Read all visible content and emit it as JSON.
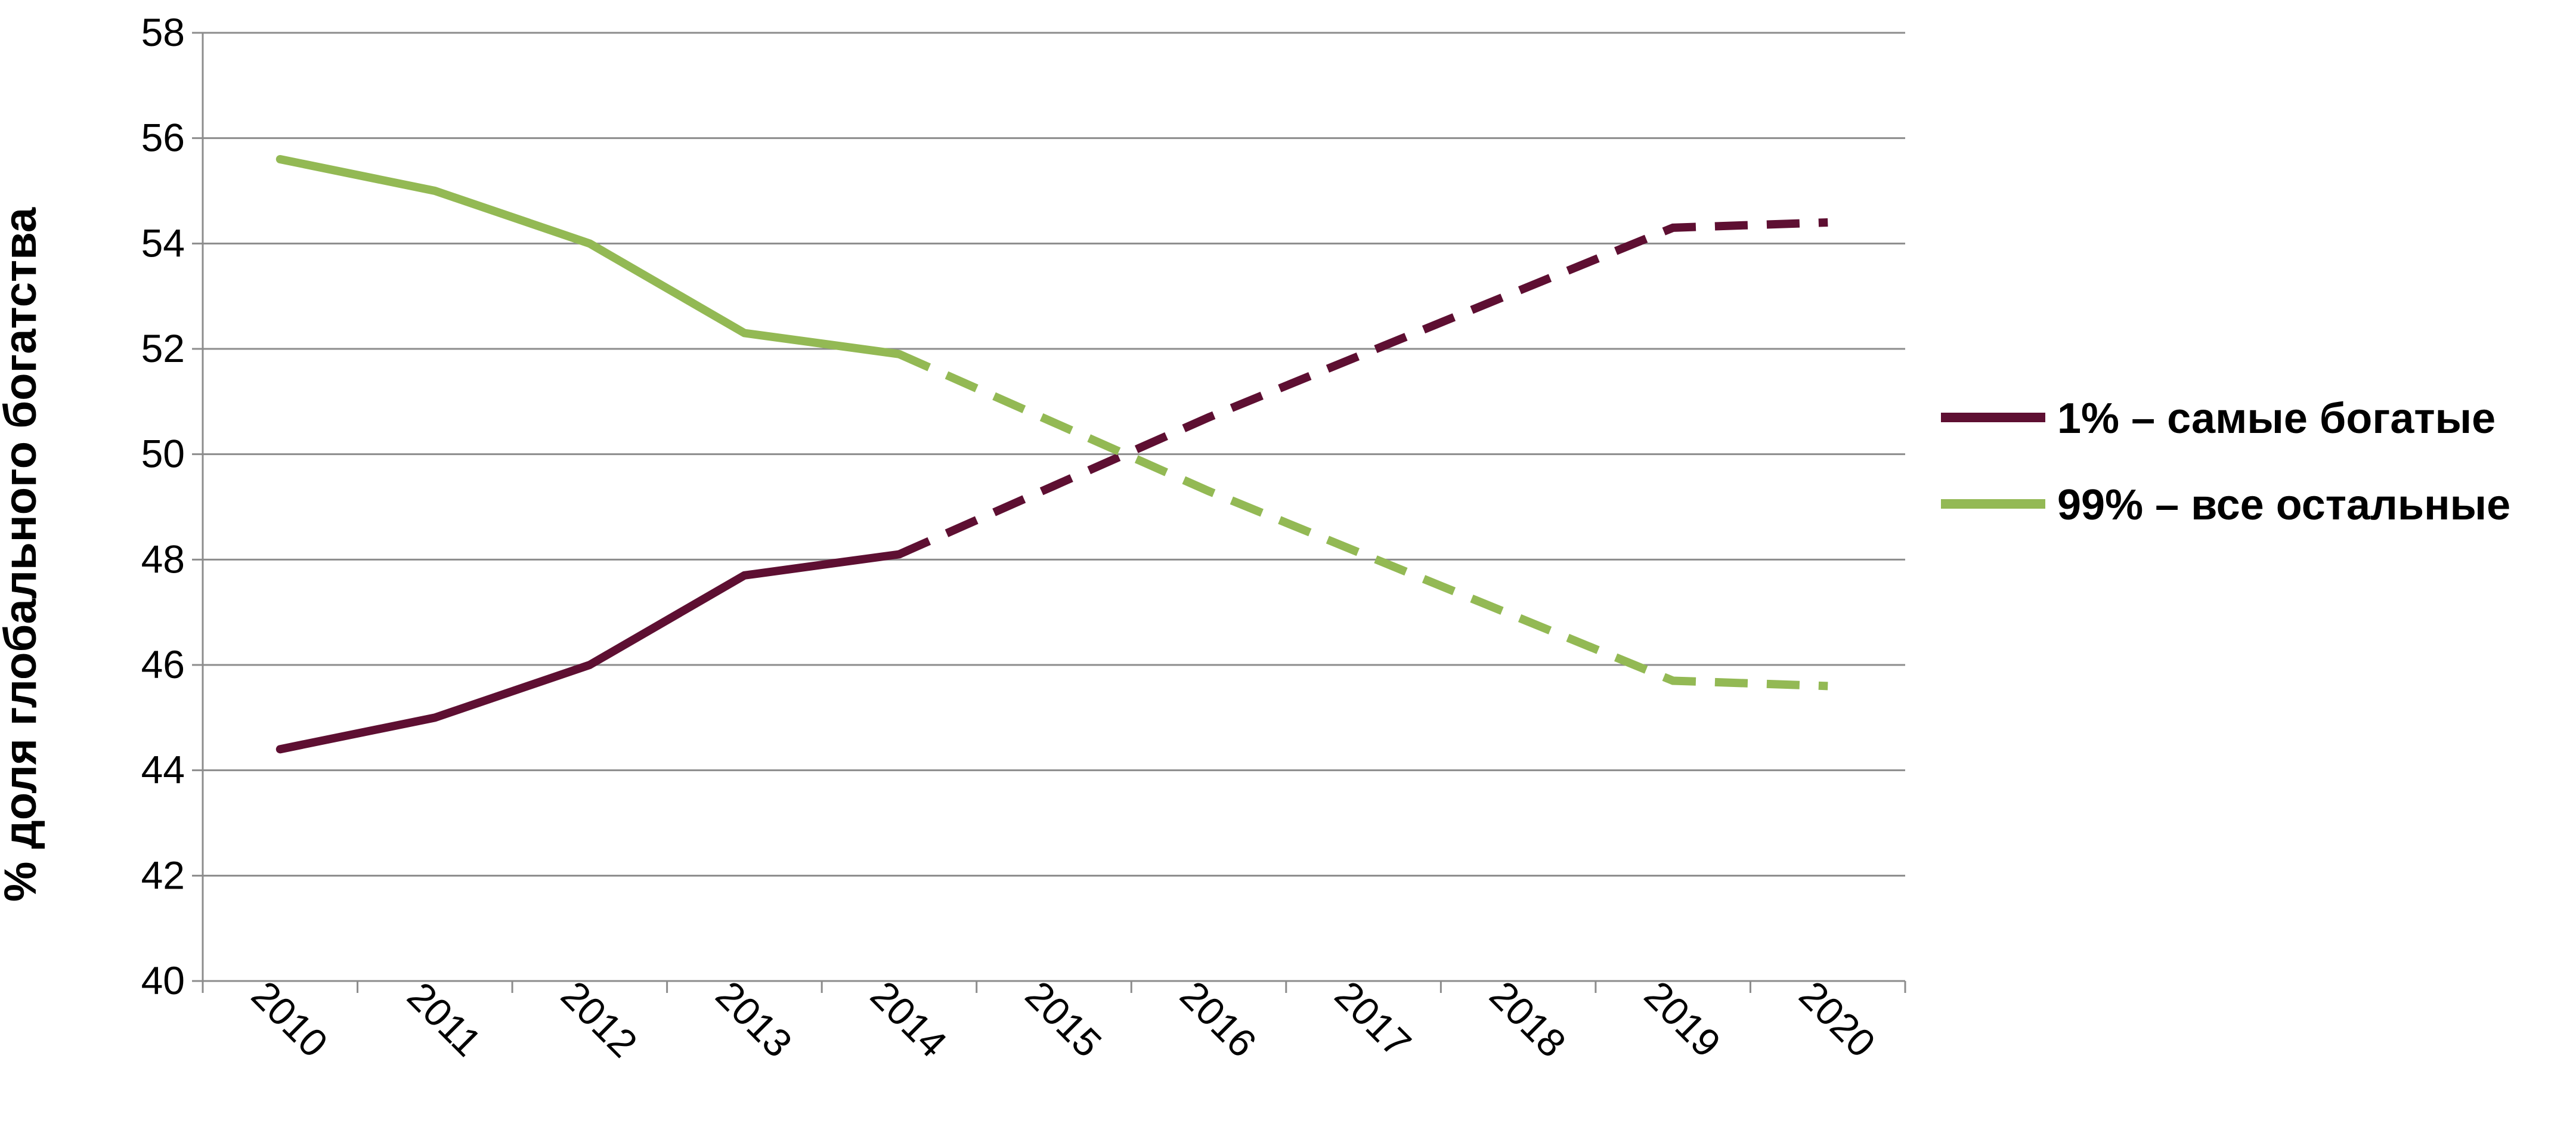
{
  "chart_data": {
    "type": "line",
    "title": "",
    "xlabel": "",
    "ylabel": "% доля глобального богатства",
    "categories": [
      "2010",
      "2011",
      "2012",
      "2013",
      "2014",
      "2015",
      "2016",
      "2017",
      "2018",
      "2019",
      "2020"
    ],
    "ylim": [
      40,
      58
    ],
    "yticks": [
      "40",
      "42",
      "44",
      "46",
      "48",
      "50",
      "52",
      "54",
      "56",
      "58"
    ],
    "grid": "horizontal",
    "legend_position": "right",
    "actual_through": "2014",
    "projected_from": "2014",
    "series": [
      {
        "name": "1% – самые богатые",
        "color": "#5e0f32",
        "values": [
          44.4,
          45.0,
          46.0,
          47.7,
          48.1,
          49.4,
          50.7,
          51.9,
          53.1,
          54.3,
          54.4
        ]
      },
      {
        "name": "99% – все остальные",
        "color": "#93b954",
        "values": [
          55.6,
          55.0,
          54.0,
          52.3,
          51.9,
          50.6,
          49.3,
          48.1,
          46.9,
          45.7,
          45.6
        ]
      }
    ]
  }
}
